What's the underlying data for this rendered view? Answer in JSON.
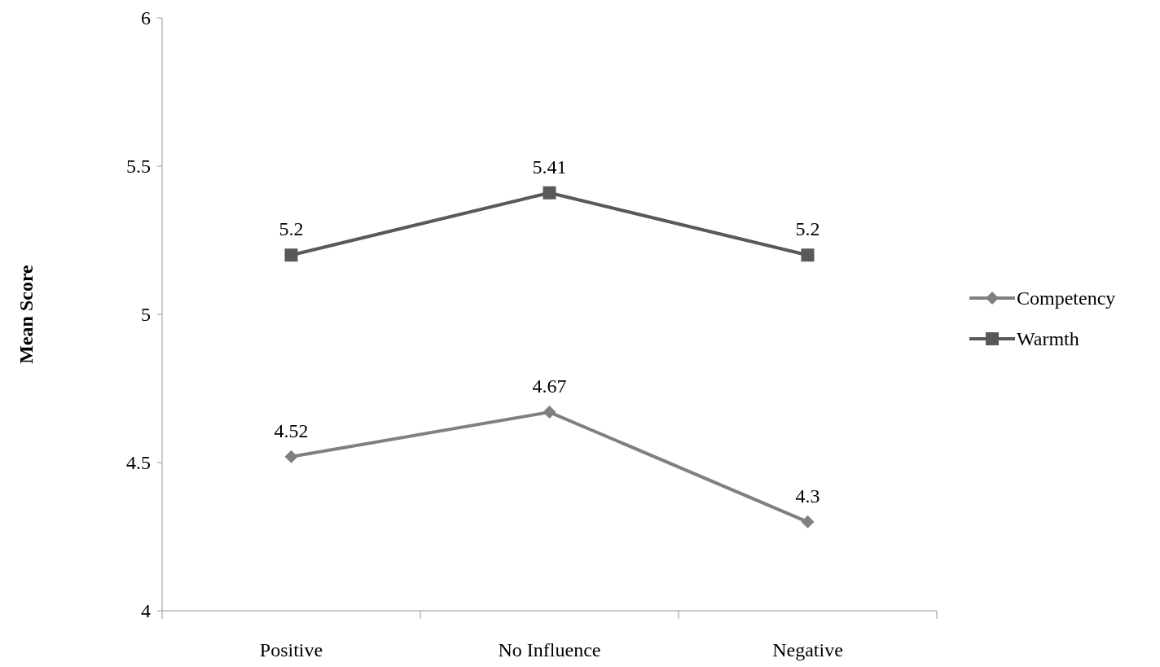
{
  "chart_data": {
    "type": "line",
    "ylabel": "Mean Score",
    "categories": [
      "Positive",
      "No Influence",
      "Negative"
    ],
    "series": [
      {
        "name": "Competency",
        "color": "#808080",
        "values": [
          4.52,
          4.67,
          4.3
        ],
        "marker": "diamond"
      },
      {
        "name": "Warmth",
        "color": "#595959",
        "values": [
          5.2,
          5.41,
          5.2
        ],
        "marker": "square"
      }
    ],
    "ylim": [
      4,
      6
    ],
    "yticks": [
      4,
      4.5,
      5,
      5.5,
      6
    ],
    "data_labels": true,
    "legend": "right"
  }
}
